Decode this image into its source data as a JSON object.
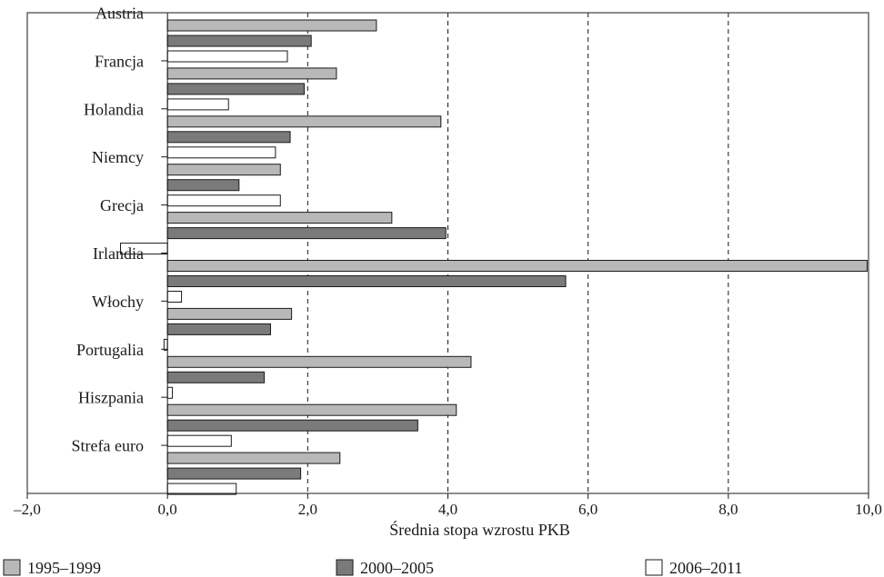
{
  "chart_data": {
    "type": "bar",
    "orientation": "horizontal",
    "categories": [
      "Austria",
      "Francja",
      "Holandia",
      "Niemcy",
      "Grecja",
      "Irlandia",
      "Włochy",
      "Portugalia",
      "Hiszpania",
      "Strefa euro"
    ],
    "series": [
      {
        "name": "1995–1999",
        "color": "#b8b8b8",
        "values": [
          2.98,
          2.41,
          3.9,
          1.61,
          3.2,
          9.98,
          1.77,
          4.33,
          4.12,
          2.46
        ]
      },
      {
        "name": "2000–2005",
        "color": "#7a7a7a",
        "values": [
          2.05,
          1.95,
          1.75,
          1.02,
          3.97,
          5.68,
          1.47,
          1.38,
          3.57,
          1.9
        ]
      },
      {
        "name": "2006–2011",
        "color": "#ffffff",
        "values": [
          1.71,
          0.87,
          1.54,
          1.61,
          -0.67,
          0.2,
          -0.05,
          0.07,
          0.91,
          0.98
        ]
      }
    ],
    "xlabel": "Średnia stopa wzrostu PKB",
    "ylabel": "",
    "title": "",
    "xlim": [
      -2.0,
      10.0
    ],
    "x_ticks": [
      -2.0,
      0.0,
      2.0,
      4.0,
      6.0,
      8.0,
      10.0
    ],
    "x_tick_labels": [
      "–2,0",
      "0,0",
      "2,0",
      "4,0",
      "6,0",
      "8,0",
      "10,0"
    ],
    "grid": "vertical dashed",
    "legend_position": "bottom"
  }
}
